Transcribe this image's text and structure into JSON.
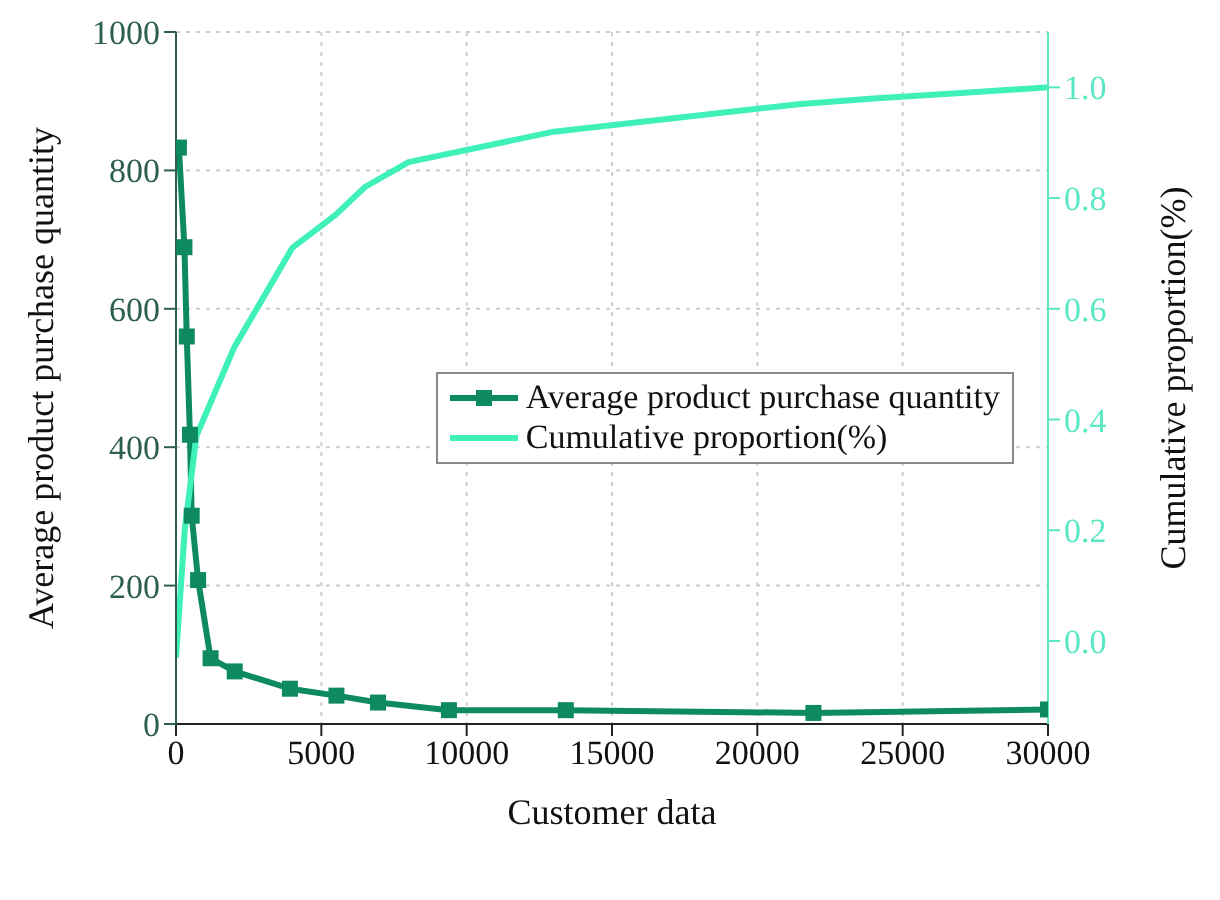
{
  "chart_data": {
    "type": "line",
    "xlabel": "Customer data",
    "ylabel": "Average product purchase quantity",
    "y2label": "Cumulative proportion(%)",
    "series": [
      {
        "name": "Average product purchase quantity",
        "color": "#0e8a63",
        "marker": "square",
        "x": [
          100,
          290,
          370,
          480,
          540,
          760,
          1190,
          2020,
          3920,
          5520,
          6950,
          9390,
          13410,
          21930,
          30000
        ],
        "values": [
          833,
          689,
          560,
          418,
          301,
          208,
          95,
          76,
          51,
          41,
          31,
          20,
          20,
          16,
          21
        ]
      },
      {
        "name": "Cumulative proportion(%)",
        "color": "#3ff0b8",
        "axis": "y2",
        "marker": "none",
        "x": [
          0,
          300,
          700,
          2000,
          4000,
          5500,
          6500,
          8000,
          13000,
          21500,
          24000,
          27000,
          30000
        ],
        "values": [
          -0.03,
          0.2,
          0.37,
          0.53,
          0.71,
          0.77,
          0.82,
          0.865,
          0.92,
          0.97,
          0.98,
          0.99,
          1.0
        ]
      }
    ],
    "xlim": [
      0,
      30000
    ],
    "xticks": [
      0,
      5000,
      10000,
      15000,
      20000,
      25000,
      30000
    ],
    "ylim": [
      0,
      1000
    ],
    "yticks": [
      0,
      200,
      400,
      600,
      800,
      1000
    ],
    "y2lim": [
      -0.15,
      1.1
    ],
    "y2ticks": [
      {
        "value": 0,
        "label": "0.0"
      },
      {
        "value": 0.2,
        "label": "0.2"
      },
      {
        "value": 0.4,
        "label": "0.4"
      },
      {
        "value": 0.6,
        "label": "0.6"
      },
      {
        "value": 0.8,
        "label": "0.8"
      },
      {
        "value": 1,
        "label": "1.0"
      }
    ],
    "grid": true,
    "legend": "right",
    "line_style": "solid"
  }
}
